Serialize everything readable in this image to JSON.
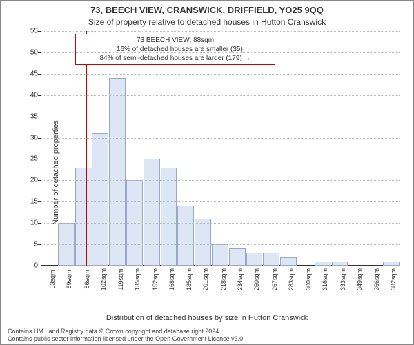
{
  "title": "73, BEECH VIEW, CRANSWICK, DRIFFIELD, YO25 9QQ",
  "subtitle": "Size of property relative to detached houses in Hutton Cranswick",
  "ylabel": "Number of detached properties",
  "xlabel": "Distribution of detached houses by size in Hutton Cranswick",
  "license_line1": "Contains HM Land Registry data © Crown copyright and database right 2024.",
  "license_line2": "Contains public sector information licensed under the Open Government Licence v3.0.",
  "chart": {
    "type": "histogram",
    "ylim": [
      0,
      55
    ],
    "ytick_step": 5,
    "bar_fill": "#dce6f4",
    "bar_stroke": "#9aa7c7",
    "grid_color": "#bbbbbb",
    "axis_color": "#333333",
    "marker_color": "#cc0000",
    "marker_value": 88,
    "xmin": 45,
    "xmax": 391,
    "bin_width": 16.5,
    "xticks": [
      53,
      69,
      86,
      102,
      119,
      135,
      152,
      168,
      185,
      201,
      218,
      234,
      250,
      267,
      283,
      300,
      316,
      333,
      349,
      366,
      382
    ],
    "xtick_suffix": "sqm",
    "bins": [
      {
        "start": 45,
        "count": 0
      },
      {
        "start": 61.5,
        "count": 10
      },
      {
        "start": 78,
        "count": 23
      },
      {
        "start": 88,
        "count": 23
      },
      {
        "start": 94.5,
        "count": 31
      },
      {
        "start": 111,
        "count": 44
      },
      {
        "start": 127.5,
        "count": 20
      },
      {
        "start": 144,
        "count": 25
      },
      {
        "start": 160.5,
        "count": 23
      },
      {
        "start": 177,
        "count": 14
      },
      {
        "start": 193.5,
        "count": 11
      },
      {
        "start": 210,
        "count": 5
      },
      {
        "start": 226.5,
        "count": 4
      },
      {
        "start": 243,
        "count": 3
      },
      {
        "start": 259.5,
        "count": 3
      },
      {
        "start": 276,
        "count": 2
      },
      {
        "start": 292.5,
        "count": 0
      },
      {
        "start": 309,
        "count": 1
      },
      {
        "start": 325.5,
        "count": 1
      },
      {
        "start": 342,
        "count": 0
      },
      {
        "start": 358.5,
        "count": 0
      },
      {
        "start": 375,
        "count": 1
      }
    ]
  },
  "annotation": {
    "line1": "73 BEECH VIEW: 88sqm",
    "line2": "← 16% of detached houses are smaller (35)",
    "line3": "84% of semi-detached houses are larger (179) →",
    "border_color": "#cc0000",
    "fontsize": 10
  }
}
